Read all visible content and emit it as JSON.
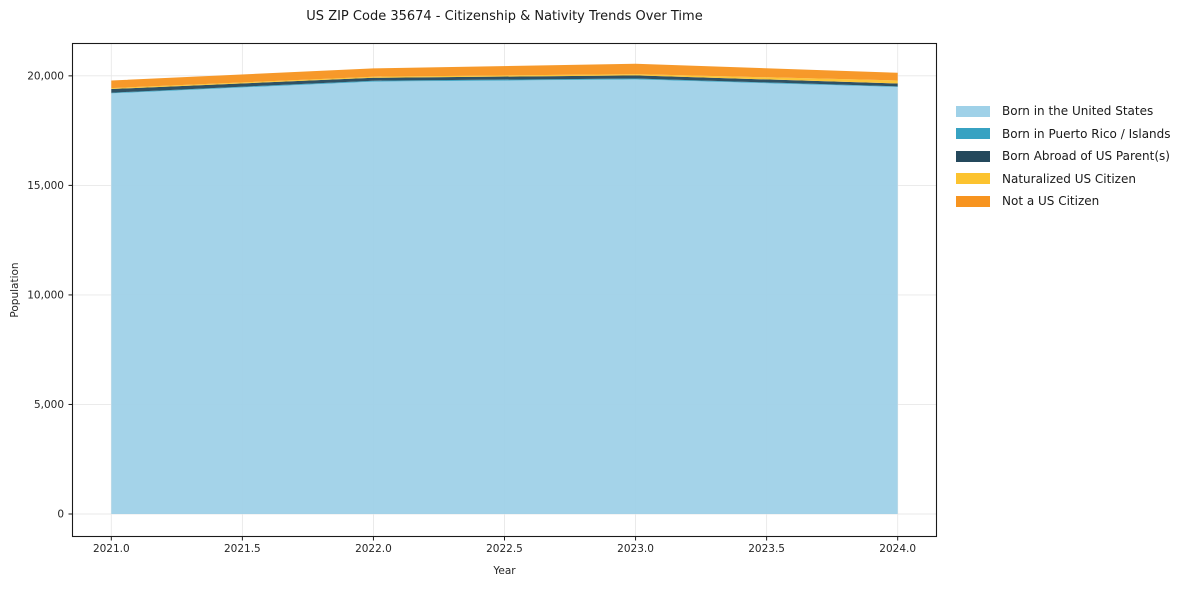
{
  "chart_data": {
    "type": "area",
    "stacked": true,
    "title": "US ZIP Code 35674 - Citizenship & Nativity Trends Over Time",
    "xlabel": "Year",
    "ylabel": "Population",
    "x": [
      2021,
      2022,
      2023,
      2024
    ],
    "series": [
      {
        "name": "Born in the United States",
        "color": "#9fd1e8",
        "values": [
          19200,
          19740,
          19840,
          19490
        ]
      },
      {
        "name": "Born in Puerto Rico / Islands",
        "color": "#37a2c2",
        "values": [
          30,
          40,
          40,
          30
        ]
      },
      {
        "name": "Born Abroad of US Parent(s)",
        "color": "#24485c",
        "values": [
          170,
          130,
          140,
          130
        ]
      },
      {
        "name": "Naturalized US Citizen",
        "color": "#fcc32f",
        "values": [
          40,
          50,
          60,
          140
        ]
      },
      {
        "name": "Not a US Citizen",
        "color": "#f7941f",
        "values": [
          350,
          380,
          470,
          350
        ]
      }
    ],
    "xlim": [
      2020.85,
      2024.15
    ],
    "ylim": [
      -1050,
      21500
    ],
    "xticks": {
      "values": [
        2021.0,
        2021.5,
        2022.0,
        2022.5,
        2023.0,
        2023.5,
        2024.0
      ],
      "labels": [
        "2021.0",
        "2021.5",
        "2022.0",
        "2022.5",
        "2023.0",
        "2023.5",
        "2024.0"
      ]
    },
    "yticks": {
      "values": [
        0,
        5000,
        10000,
        15000,
        20000
      ],
      "labels": [
        "0",
        "5,000",
        "10,000",
        "15,000",
        "20,000"
      ]
    },
    "grid": true,
    "legend_position": "right-outside",
    "styles": {
      "grid_color": "#e8e8e8",
      "spine_color": "#1a1a1a",
      "tick_label_color": "#262626",
      "background": "#ffffff"
    }
  }
}
